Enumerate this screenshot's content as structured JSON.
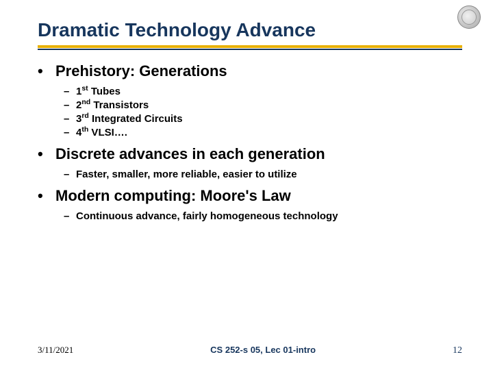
{
  "title": "Dramatic Technology Advance",
  "colors": {
    "title_color": "#17365d",
    "underline_gold": "#e8b000",
    "underline_navy": "#17365d",
    "footer_accent": "#17365d",
    "background": "#ffffff"
  },
  "sections": [
    {
      "heading": "Prehistory: Generations",
      "items": [
        {
          "ord": "1",
          "sup": "st",
          "text": " Tubes"
        },
        {
          "ord": "2",
          "sup": "nd",
          "text": " Transistors"
        },
        {
          "ord": "3",
          "sup": "rd",
          "text": " Integrated Circuits"
        },
        {
          "ord": "4",
          "sup": "th",
          "text": " VLSI…."
        }
      ]
    },
    {
      "heading": "Discrete advances in each generation",
      "items": [
        {
          "text": "Faster, smaller, more reliable, easier to utilize"
        }
      ]
    },
    {
      "heading": "Modern computing: Moore's Law",
      "items": [
        {
          "text": "Continuous advance, fairly homogeneous technology"
        }
      ]
    }
  ],
  "footer": {
    "date": "3/11/2021",
    "center": "CS 252-s 05, Lec 01-intro",
    "page": "12"
  }
}
